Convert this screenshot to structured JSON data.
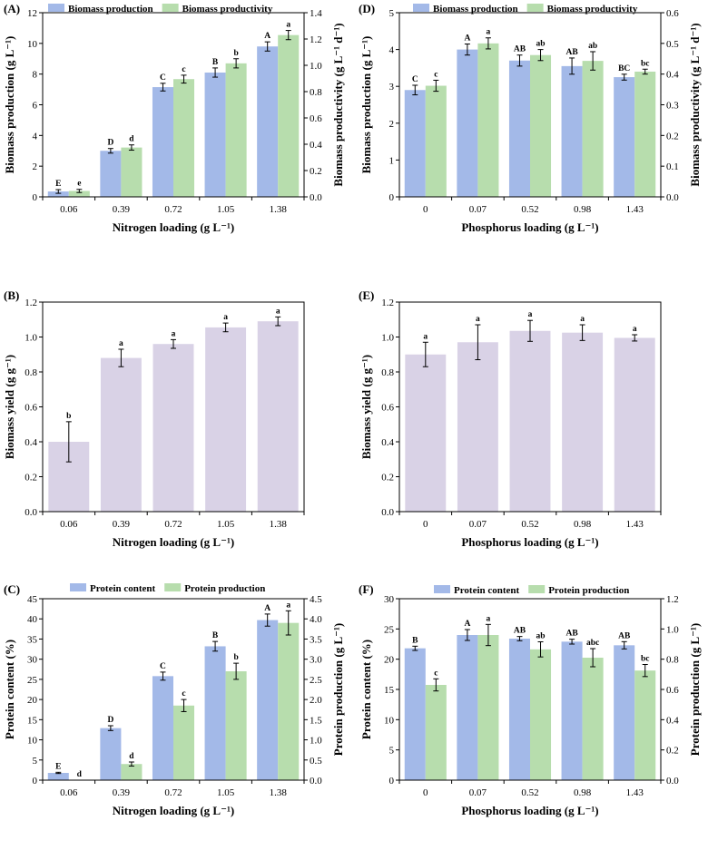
{
  "chart_data": [
    {
      "panel": "(A)",
      "type": "bar",
      "dual_axis": true,
      "categories": [
        "0.06",
        "0.39",
        "0.72",
        "1.05",
        "1.38"
      ],
      "xlabel": "Nitrogen loading (g L⁻¹)",
      "ylabel": "Biomass production (g L⁻¹)",
      "y2label": "Biomass productivity (g L⁻¹ d⁻¹)",
      "ylim": [
        0,
        12
      ],
      "yticks": [
        0,
        2,
        4,
        6,
        8,
        10,
        12
      ],
      "y2lim": [
        0,
        1.4
      ],
      "y2ticks": [
        0,
        0.2,
        0.4,
        0.6,
        0.8,
        1.0,
        1.2,
        1.4
      ],
      "series": [
        {
          "name": "Biomass production",
          "axis": "left",
          "color": "#a3b9e8",
          "values": [
            0.35,
            3.0,
            7.15,
            8.1,
            9.8
          ],
          "errors": [
            0.12,
            0.15,
            0.25,
            0.3,
            0.3
          ],
          "labels": [
            "E",
            "D",
            "C",
            "B",
            "A"
          ]
        },
        {
          "name": "Biomass productivity",
          "axis": "right",
          "color": "#b7ddad",
          "values": [
            0.045,
            0.375,
            0.895,
            1.015,
            1.23
          ],
          "errors": [
            0.012,
            0.02,
            0.03,
            0.035,
            0.035
          ],
          "labels": [
            "e",
            "d",
            "c",
            "b",
            "a"
          ]
        }
      ]
    },
    {
      "panel": "(D)",
      "type": "bar",
      "dual_axis": true,
      "categories": [
        "0",
        "0.07",
        "0.52",
        "0.98",
        "1.43"
      ],
      "xlabel": "Phosphorus loading (g L⁻¹)",
      "ylabel": "Biomass production (g L⁻¹)",
      "y2label": "Biomass productivity (g L⁻¹ d⁻¹)",
      "ylim": [
        0,
        5
      ],
      "yticks": [
        0,
        1,
        2,
        3,
        4,
        5
      ],
      "y2lim": [
        0,
        0.6
      ],
      "y2ticks": [
        0,
        0.1,
        0.2,
        0.3,
        0.4,
        0.5,
        0.6
      ],
      "series": [
        {
          "name": "Biomass production",
          "axis": "left",
          "color": "#a3b9e8",
          "values": [
            2.9,
            4.0,
            3.7,
            3.55,
            3.25
          ],
          "errors": [
            0.13,
            0.15,
            0.15,
            0.22,
            0.08
          ],
          "labels": [
            "C",
            "A",
            "AB",
            "AB",
            "BC"
          ]
        },
        {
          "name": "Biomass productivity",
          "axis": "right",
          "color": "#b7ddad",
          "values": [
            0.362,
            0.5,
            0.462,
            0.443,
            0.408
          ],
          "errors": [
            0.018,
            0.018,
            0.018,
            0.03,
            0.008
          ],
          "labels": [
            "c",
            "a",
            "ab",
            "ab",
            "bc"
          ]
        }
      ]
    },
    {
      "panel": "(B)",
      "type": "bar",
      "dual_axis": false,
      "categories": [
        "0.06",
        "0.39",
        "0.72",
        "1.05",
        "1.38"
      ],
      "xlabel": "Nitrogen loading (g L⁻¹)",
      "ylabel": "Biomass yield (g g⁻¹)",
      "ylim": [
        0,
        1.2
      ],
      "yticks": [
        0.0,
        0.2,
        0.4,
        0.6,
        0.8,
        1.0,
        1.2
      ],
      "series": [
        {
          "name": "Biomass yield",
          "axis": "left",
          "color": "#d9d2e6",
          "values": [
            0.4,
            0.88,
            0.96,
            1.055,
            1.09
          ],
          "errors": [
            0.115,
            0.05,
            0.025,
            0.025,
            0.025
          ],
          "labels": [
            "b",
            "a",
            "a",
            "a",
            "a"
          ]
        }
      ]
    },
    {
      "panel": "(E)",
      "type": "bar",
      "dual_axis": false,
      "categories": [
        "0",
        "0.07",
        "0.52",
        "0.98",
        "1.43"
      ],
      "xlabel": "Phosphorus loading (g L⁻¹)",
      "ylabel": "Biomass yield (g g⁻¹)",
      "ylim": [
        0,
        1.2
      ],
      "yticks": [
        0.0,
        0.2,
        0.4,
        0.6,
        0.8,
        1.0,
        1.2
      ],
      "series": [
        {
          "name": "Biomass yield",
          "axis": "left",
          "color": "#d9d2e6",
          "values": [
            0.9,
            0.97,
            1.035,
            1.025,
            0.995
          ],
          "errors": [
            0.07,
            0.1,
            0.06,
            0.045,
            0.018
          ],
          "labels": [
            "a",
            "a",
            "a",
            "a",
            "a"
          ]
        }
      ]
    },
    {
      "panel": "(C)",
      "type": "bar",
      "dual_axis": true,
      "categories": [
        "0.06",
        "0.39",
        "0.72",
        "1.05",
        "1.38"
      ],
      "xlabel": "Nitrogen loading (g L⁻¹)",
      "ylabel": "Protein content (%)",
      "y2label": "Protein production (g L⁻¹)",
      "ylim": [
        0,
        45
      ],
      "yticks": [
        0,
        5,
        10,
        15,
        20,
        25,
        30,
        35,
        40,
        45
      ],
      "y2lim": [
        0,
        4.5
      ],
      "y2ticks": [
        0.0,
        0.5,
        1.0,
        1.5,
        2.0,
        2.5,
        3.0,
        3.5,
        4.0,
        4.5
      ],
      "series": [
        {
          "name": "Protein content",
          "axis": "left",
          "color": "#a3b9e8",
          "values": [
            1.8,
            12.9,
            25.8,
            33.2,
            39.7
          ],
          "errors": [
            0.15,
            0.6,
            1.0,
            1.2,
            1.5
          ],
          "labels": [
            "E",
            "D",
            "C",
            "B",
            "A"
          ]
        },
        {
          "name": "Protein production",
          "axis": "right",
          "color": "#b7ddad",
          "values": [
            0.005,
            0.4,
            1.85,
            2.7,
            3.9
          ],
          "errors": [
            0.0,
            0.05,
            0.15,
            0.2,
            0.3
          ],
          "labels": [
            "d",
            "d",
            "c",
            "b",
            "a"
          ]
        }
      ]
    },
    {
      "panel": "(F)",
      "type": "bar",
      "dual_axis": true,
      "categories": [
        "0",
        "0.07",
        "0.52",
        "0.98",
        "1.43"
      ],
      "xlabel": "Phosphorus loading (g L⁻¹)",
      "ylabel": "Protein content (%)",
      "y2label": "Protein production (g L⁻¹)",
      "ylim": [
        0,
        30
      ],
      "yticks": [
        0,
        5,
        10,
        15,
        20,
        25,
        30
      ],
      "y2lim": [
        0,
        1.2
      ],
      "y2ticks": [
        0.0,
        0.2,
        0.4,
        0.6,
        0.8,
        1.0,
        1.2
      ],
      "series": [
        {
          "name": "Protein content",
          "axis": "left",
          "color": "#a3b9e8",
          "values": [
            21.8,
            24.0,
            23.4,
            22.9,
            22.3
          ],
          "errors": [
            0.35,
            0.9,
            0.35,
            0.4,
            0.6
          ],
          "labels": [
            "B",
            "A",
            "AB",
            "AB",
            "AB"
          ]
        },
        {
          "name": "Protein production",
          "axis": "right",
          "color": "#b7ddad",
          "values": [
            0.63,
            0.96,
            0.865,
            0.81,
            0.725
          ],
          "errors": [
            0.04,
            0.07,
            0.05,
            0.06,
            0.04
          ],
          "labels": [
            "c",
            "a",
            "ab",
            "abc",
            "bc"
          ]
        }
      ]
    }
  ]
}
